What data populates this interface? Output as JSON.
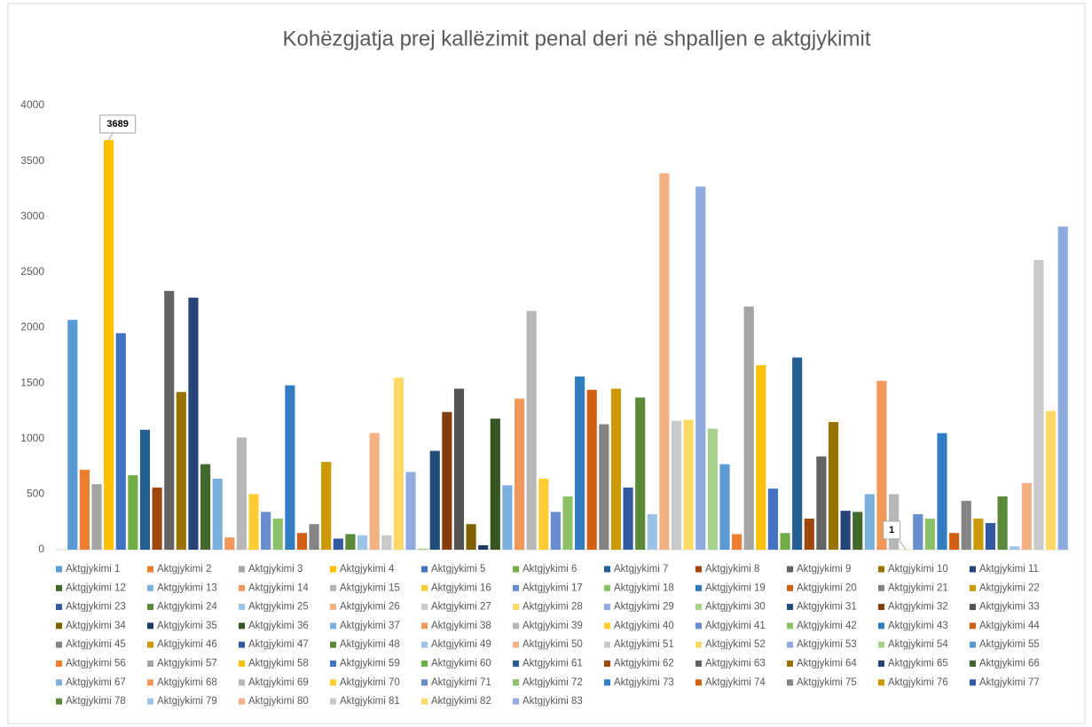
{
  "chart_data": {
    "type": "bar",
    "title": "Kohëzgjatja prej kallëzimit penal deri në shpalljen e aktgjykimit",
    "ylim": [
      0,
      4000
    ],
    "yticks": [
      0,
      500,
      1000,
      1500,
      2000,
      2500,
      3000,
      3500,
      4000
    ],
    "grid": false,
    "legend": "bottom",
    "series": [
      {
        "name": "Aktgjykimi 1",
        "color": "#5B9BD5",
        "values": [
          2070
        ]
      },
      {
        "name": "Aktgjykimi 2",
        "color": "#ED7D31",
        "values": [
          720
        ]
      },
      {
        "name": "Aktgjykimi 3",
        "color": "#A5A5A5",
        "values": [
          590
        ]
      },
      {
        "name": "Aktgjykimi 4",
        "color": "#FFC000",
        "values": [
          3689
        ],
        "data_label": true
      },
      {
        "name": "Aktgjykimi 5",
        "color": "#4472C4",
        "values": [
          1950
        ]
      },
      {
        "name": "Aktgjykimi 6",
        "color": "#70AD47",
        "values": [
          670
        ]
      },
      {
        "name": "Aktgjykimi 7",
        "color": "#255E91",
        "values": [
          1080
        ]
      },
      {
        "name": "Aktgjykimi 8",
        "color": "#9E480E",
        "values": [
          560
        ]
      },
      {
        "name": "Aktgjykimi 9",
        "color": "#636363",
        "values": [
          2330
        ]
      },
      {
        "name": "Aktgjykimi 10",
        "color": "#997300",
        "values": [
          1420
        ]
      },
      {
        "name": "Aktgjykimi 11",
        "color": "#264478",
        "values": [
          2270
        ]
      },
      {
        "name": "Aktgjykimi 12",
        "color": "#43682B",
        "values": [
          770
        ]
      },
      {
        "name": "Aktgjykimi 13",
        "color": "#7CAFDD",
        "values": [
          640
        ]
      },
      {
        "name": "Aktgjykimi 14",
        "color": "#F1975A",
        "values": [
          110
        ]
      },
      {
        "name": "Aktgjykimi 15",
        "color": "#B7B7B7",
        "values": [
          1010
        ]
      },
      {
        "name": "Aktgjykimi 16",
        "color": "#FFCD33",
        "values": [
          500
        ]
      },
      {
        "name": "Aktgjykimi 17",
        "color": "#698ED0",
        "values": [
          340
        ]
      },
      {
        "name": "Aktgjykimi 18",
        "color": "#8CC168",
        "values": [
          280
        ]
      },
      {
        "name": "Aktgjykimi 19",
        "color": "#327DC2",
        "values": [
          1480
        ]
      },
      {
        "name": "Aktgjykimi 20",
        "color": "#D26012",
        "values": [
          150
        ]
      },
      {
        "name": "Aktgjykimi 21",
        "color": "#848484",
        "values": [
          230
        ]
      },
      {
        "name": "Aktgjykimi 22",
        "color": "#CC9A00",
        "values": [
          790
        ]
      },
      {
        "name": "Aktgjykimi 23",
        "color": "#335AA1",
        "values": [
          100
        ]
      },
      {
        "name": "Aktgjykimi 24",
        "color": "#5A8A39",
        "values": [
          140
        ]
      },
      {
        "name": "Aktgjykimi 25",
        "color": "#9DC3E6",
        "values": [
          130
        ]
      },
      {
        "name": "Aktgjykimi 26",
        "color": "#F4B183",
        "values": [
          1050
        ]
      },
      {
        "name": "Aktgjykimi 27",
        "color": "#C9C9C9",
        "values": [
          130
        ]
      },
      {
        "name": "Aktgjykimi 28",
        "color": "#FFD966",
        "values": [
          1550
        ]
      },
      {
        "name": "Aktgjykimi 29",
        "color": "#8FAADC",
        "values": [
          700
        ]
      },
      {
        "name": "Aktgjykimi 30",
        "color": "#A9D18E",
        "values": [
          10
        ]
      },
      {
        "name": "Aktgjykimi 31",
        "color": "#1F4E79",
        "values": [
          890
        ]
      },
      {
        "name": "Aktgjykimi 32",
        "color": "#843C0C",
        "values": [
          1240
        ]
      },
      {
        "name": "Aktgjykimi 33",
        "color": "#525252",
        "values": [
          1450
        ]
      },
      {
        "name": "Aktgjykimi 34",
        "color": "#7F6000",
        "values": [
          230
        ]
      },
      {
        "name": "Aktgjykimi 35",
        "color": "#203864",
        "values": [
          40
        ]
      },
      {
        "name": "Aktgjykimi 36",
        "color": "#375623",
        "values": [
          1180
        ]
      },
      {
        "name": "Aktgjykimi 37",
        "color": "#7CAFDD",
        "values": [
          580
        ]
      },
      {
        "name": "Aktgjykimi 38",
        "color": "#F1975A",
        "values": [
          1360
        ]
      },
      {
        "name": "Aktgjykimi 39",
        "color": "#B7B7B7",
        "values": [
          2150
        ]
      },
      {
        "name": "Aktgjykimi 40",
        "color": "#FFCD33",
        "values": [
          640
        ]
      },
      {
        "name": "Aktgjykimi 41",
        "color": "#698ED0",
        "values": [
          340
        ]
      },
      {
        "name": "Aktgjykimi 42",
        "color": "#8CC168",
        "values": [
          480
        ]
      },
      {
        "name": "Aktgjykimi 43",
        "color": "#327DC2",
        "values": [
          1560
        ]
      },
      {
        "name": "Aktgjykimi 44",
        "color": "#D26012",
        "values": [
          1440
        ]
      },
      {
        "name": "Aktgjykimi 45",
        "color": "#848484",
        "values": [
          1130
        ]
      },
      {
        "name": "Aktgjykimi 46",
        "color": "#CC9A00",
        "values": [
          1450
        ]
      },
      {
        "name": "Aktgjykimi 47",
        "color": "#335AA1",
        "values": [
          560
        ]
      },
      {
        "name": "Aktgjykimi 48",
        "color": "#5A8A39",
        "values": [
          1370
        ]
      },
      {
        "name": "Aktgjykimi 49",
        "color": "#9DC3E6",
        "values": [
          320
        ]
      },
      {
        "name": "Aktgjykimi 50",
        "color": "#F4B183",
        "values": [
          3390
        ]
      },
      {
        "name": "Aktgjykimi 51",
        "color": "#C9C9C9",
        "values": [
          1160
        ]
      },
      {
        "name": "Aktgjykimi 52",
        "color": "#FFD966",
        "values": [
          1170
        ]
      },
      {
        "name": "Aktgjykimi 53",
        "color": "#8FAADC",
        "values": [
          3270
        ]
      },
      {
        "name": "Aktgjykimi 54",
        "color": "#A9D18E",
        "values": [
          1090
        ]
      },
      {
        "name": "Aktgjykimi 55",
        "color": "#5B9BD5",
        "values": [
          770
        ]
      },
      {
        "name": "Aktgjykimi 56",
        "color": "#ED7D31",
        "values": [
          140
        ]
      },
      {
        "name": "Aktgjykimi 57",
        "color": "#A5A5A5",
        "values": [
          2190
        ]
      },
      {
        "name": "Aktgjykimi 58",
        "color": "#FFC000",
        "values": [
          1660
        ]
      },
      {
        "name": "Aktgjykimi 59",
        "color": "#4472C4",
        "values": [
          550
        ]
      },
      {
        "name": "Aktgjykimi 60",
        "color": "#70AD47",
        "values": [
          150
        ]
      },
      {
        "name": "Aktgjykimi 61",
        "color": "#255E91",
        "values": [
          1730
        ]
      },
      {
        "name": "Aktgjykimi 62",
        "color": "#9E480E",
        "values": [
          280
        ]
      },
      {
        "name": "Aktgjykimi 63",
        "color": "#636363",
        "values": [
          840
        ]
      },
      {
        "name": "Aktgjykimi 64",
        "color": "#997300",
        "values": [
          1150
        ]
      },
      {
        "name": "Aktgjykimi 65",
        "color": "#264478",
        "values": [
          350
        ]
      },
      {
        "name": "Aktgjykimi 66",
        "color": "#43682B",
        "values": [
          340
        ]
      },
      {
        "name": "Aktgjykimi 67",
        "color": "#7CAFDD",
        "values": [
          500
        ]
      },
      {
        "name": "Aktgjykimi 68",
        "color": "#F1975A",
        "values": [
          1520
        ]
      },
      {
        "name": "Aktgjykimi 69",
        "color": "#B7B7B7",
        "values": [
          500
        ]
      },
      {
        "name": "Aktgjykimi 70",
        "color": "#FFCD33",
        "values": [
          1
        ],
        "data_label": true
      },
      {
        "name": "Aktgjykimi 71",
        "color": "#698ED0",
        "values": [
          320
        ]
      },
      {
        "name": "Aktgjykimi 72",
        "color": "#8CC168",
        "values": [
          280
        ]
      },
      {
        "name": "Aktgjykimi 73",
        "color": "#327DC2",
        "values": [
          1050
        ]
      },
      {
        "name": "Aktgjykimi 74",
        "color": "#D26012",
        "values": [
          150
        ]
      },
      {
        "name": "Aktgjykimi 75",
        "color": "#848484",
        "values": [
          440
        ]
      },
      {
        "name": "Aktgjykimi 76",
        "color": "#CC9A00",
        "values": [
          280
        ]
      },
      {
        "name": "Aktgjykimi 77",
        "color": "#335AA1",
        "values": [
          240
        ]
      },
      {
        "name": "Aktgjykimi 78",
        "color": "#5A8A39",
        "values": [
          480
        ]
      },
      {
        "name": "Aktgjykimi 79",
        "color": "#9DC3E6",
        "values": [
          30
        ]
      },
      {
        "name": "Aktgjykimi 80",
        "color": "#F4B183",
        "values": [
          600
        ]
      },
      {
        "name": "Aktgjykimi 81",
        "color": "#C9C9C9",
        "values": [
          2610
        ]
      },
      {
        "name": "Aktgjykimi 82",
        "color": "#FFD966",
        "values": [
          1250
        ]
      },
      {
        "name": "Aktgjykimi 83",
        "color": "#8FAADC",
        "values": [
          2910
        ]
      }
    ]
  }
}
